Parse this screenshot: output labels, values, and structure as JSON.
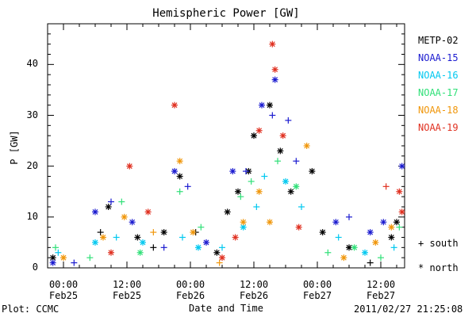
{
  "chart_data": {
    "type": "scatter",
    "title": "Hemispheric Power [GW]",
    "xlabel": "Date and Time",
    "ylabel": "P [GW]",
    "xlim": [
      "2011-02-24 21:00",
      "2011-02-27 16:30"
    ],
    "ylim": [
      0,
      48
    ],
    "yticks": [
      0,
      10,
      20,
      30,
      40
    ],
    "xticks": [
      {
        "time": "00:00",
        "date": "Feb25",
        "at": "2011-02-25 00:00"
      },
      {
        "time": "12:00",
        "date": "Feb25",
        "at": "2011-02-25 12:00"
      },
      {
        "time": "00:00",
        "date": "Feb26",
        "at": "2011-02-26 00:00"
      },
      {
        "time": "12:00",
        "date": "Feb26",
        "at": "2011-02-26 12:00"
      },
      {
        "time": "00:00",
        "date": "Feb27",
        "at": "2011-02-27 00:00"
      },
      {
        "time": "12:00",
        "date": "Feb27",
        "at": "2011-02-27 12:00"
      }
    ],
    "grid": false,
    "legend_position": "right",
    "marker_legend": [
      {
        "symbol": "+",
        "label": "south"
      },
      {
        "symbol": "*",
        "label": "north"
      }
    ],
    "series": [
      {
        "name": "METP-02",
        "color": "#000000",
        "points": [
          {
            "x": "2011-02-24 22:00",
            "y": 2,
            "h": "north"
          },
          {
            "x": "2011-02-25 07:00",
            "y": 7,
            "h": "south"
          },
          {
            "x": "2011-02-25 08:30",
            "y": 12,
            "h": "north"
          },
          {
            "x": "2011-02-25 14:00",
            "y": 6,
            "h": "north"
          },
          {
            "x": "2011-02-25 17:00",
            "y": 4,
            "h": "south"
          },
          {
            "x": "2011-02-25 19:00",
            "y": 7,
            "h": "north"
          },
          {
            "x": "2011-02-25 22:00",
            "y": 18,
            "h": "north"
          },
          {
            "x": "2011-02-26 01:00",
            "y": 7,
            "h": "south"
          },
          {
            "x": "2011-02-26 05:00",
            "y": 3,
            "h": "north"
          },
          {
            "x": "2011-02-26 07:00",
            "y": 11,
            "h": "north"
          },
          {
            "x": "2011-02-26 09:00",
            "y": 15,
            "h": "north"
          },
          {
            "x": "2011-02-26 11:00",
            "y": 19,
            "h": "north"
          },
          {
            "x": "2011-02-26 12:00",
            "y": 26,
            "h": "north"
          },
          {
            "x": "2011-02-26 15:00",
            "y": 32,
            "h": "north"
          },
          {
            "x": "2011-02-26 17:00",
            "y": 23,
            "h": "north"
          },
          {
            "x": "2011-02-26 19:00",
            "y": 15,
            "h": "north"
          },
          {
            "x": "2011-02-26 23:00",
            "y": 19,
            "h": "north"
          },
          {
            "x": "2011-02-27 01:00",
            "y": 7,
            "h": "north"
          },
          {
            "x": "2011-02-27 06:00",
            "y": 4,
            "h": "north"
          },
          {
            "x": "2011-02-27 10:00",
            "y": 1,
            "h": "south"
          },
          {
            "x": "2011-02-27 14:00",
            "y": 6,
            "h": "north"
          },
          {
            "x": "2011-02-27 15:00",
            "y": 9,
            "h": "north"
          }
        ]
      },
      {
        "name": "NOAA-15",
        "color": "#1c1cd0",
        "points": [
          {
            "x": "2011-02-24 22:00",
            "y": 1,
            "h": "north"
          },
          {
            "x": "2011-02-25 02:00",
            "y": 1,
            "h": "south"
          },
          {
            "x": "2011-02-25 06:00",
            "y": 11,
            "h": "north"
          },
          {
            "x": "2011-02-25 09:00",
            "y": 13,
            "h": "south"
          },
          {
            "x": "2011-02-25 13:00",
            "y": 9,
            "h": "north"
          },
          {
            "x": "2011-02-25 19:00",
            "y": 4,
            "h": "south"
          },
          {
            "x": "2011-02-25 21:00",
            "y": 19,
            "h": "north"
          },
          {
            "x": "2011-02-25 23:30",
            "y": 16,
            "h": "south"
          },
          {
            "x": "2011-02-26 03:00",
            "y": 5,
            "h": "north"
          },
          {
            "x": "2011-02-26 08:00",
            "y": 19,
            "h": "north"
          },
          {
            "x": "2011-02-26 10:30",
            "y": 19,
            "h": "south"
          },
          {
            "x": "2011-02-26 13:30",
            "y": 32,
            "h": "north"
          },
          {
            "x": "2011-02-26 15:30",
            "y": 30,
            "h": "south"
          },
          {
            "x": "2011-02-26 16:00",
            "y": 37,
            "h": "north"
          },
          {
            "x": "2011-02-26 18:30",
            "y": 29,
            "h": "south"
          },
          {
            "x": "2011-02-26 20:00",
            "y": 21,
            "h": "south"
          },
          {
            "x": "2011-02-27 03:30",
            "y": 9,
            "h": "north"
          },
          {
            "x": "2011-02-27 06:00",
            "y": 10,
            "h": "south"
          },
          {
            "x": "2011-02-27 10:00",
            "y": 7,
            "h": "north"
          },
          {
            "x": "2011-02-27 12:30",
            "y": 9,
            "h": "north"
          },
          {
            "x": "2011-02-27 16:00",
            "y": 20,
            "h": "north"
          }
        ]
      },
      {
        "name": "NOAA-16",
        "color": "#00c8f0",
        "points": [
          {
            "x": "2011-02-24 23:00",
            "y": 3,
            "h": "south"
          },
          {
            "x": "2011-02-25 06:00",
            "y": 5,
            "h": "north"
          },
          {
            "x": "2011-02-25 10:00",
            "y": 6,
            "h": "south"
          },
          {
            "x": "2011-02-25 15:00",
            "y": 5,
            "h": "north"
          },
          {
            "x": "2011-02-25 22:30",
            "y": 6,
            "h": "south"
          },
          {
            "x": "2011-02-26 01:30",
            "y": 4,
            "h": "north"
          },
          {
            "x": "2011-02-26 06:00",
            "y": 4,
            "h": "south"
          },
          {
            "x": "2011-02-26 10:00",
            "y": 8,
            "h": "north"
          },
          {
            "x": "2011-02-26 12:30",
            "y": 12,
            "h": "south"
          },
          {
            "x": "2011-02-26 14:00",
            "y": 18,
            "h": "south"
          },
          {
            "x": "2011-02-26 18:00",
            "y": 17,
            "h": "north"
          },
          {
            "x": "2011-02-26 21:00",
            "y": 12,
            "h": "south"
          },
          {
            "x": "2011-02-27 04:00",
            "y": 6,
            "h": "south"
          },
          {
            "x": "2011-02-27 09:00",
            "y": 3,
            "h": "north"
          },
          {
            "x": "2011-02-27 14:30",
            "y": 4,
            "h": "south"
          }
        ]
      },
      {
        "name": "NOAA-17",
        "color": "#30e078",
        "points": [
          {
            "x": "2011-02-24 22:30",
            "y": 4,
            "h": "south"
          },
          {
            "x": "2011-02-25 05:00",
            "y": 2,
            "h": "south"
          },
          {
            "x": "2011-02-25 11:00",
            "y": 13,
            "h": "south"
          },
          {
            "x": "2011-02-25 14:30",
            "y": 3,
            "h": "north"
          },
          {
            "x": "2011-02-25 22:00",
            "y": 15,
            "h": "south"
          },
          {
            "x": "2011-02-26 02:00",
            "y": 8,
            "h": "south"
          },
          {
            "x": "2011-02-26 09:30",
            "y": 14,
            "h": "south"
          },
          {
            "x": "2011-02-26 11:30",
            "y": 17,
            "h": "south"
          },
          {
            "x": "2011-02-26 16:30",
            "y": 21,
            "h": "south"
          },
          {
            "x": "2011-02-26 20:00",
            "y": 16,
            "h": "north"
          },
          {
            "x": "2011-02-27 02:00",
            "y": 3,
            "h": "south"
          },
          {
            "x": "2011-02-27 07:00",
            "y": 4,
            "h": "north"
          },
          {
            "x": "2011-02-27 12:00",
            "y": 2,
            "h": "south"
          },
          {
            "x": "2011-02-27 15:30",
            "y": 8,
            "h": "south"
          }
        ]
      },
      {
        "name": "NOAA-18",
        "color": "#f0960a",
        "points": [
          {
            "x": "2011-02-25 00:00",
            "y": 2,
            "h": "north"
          },
          {
            "x": "2011-02-25 07:30",
            "y": 6,
            "h": "north"
          },
          {
            "x": "2011-02-25 11:30",
            "y": 10,
            "h": "north"
          },
          {
            "x": "2011-02-25 17:00",
            "y": 7,
            "h": "south"
          },
          {
            "x": "2011-02-25 22:00",
            "y": 21,
            "h": "north"
          },
          {
            "x": "2011-02-26 00:30",
            "y": 7,
            "h": "north"
          },
          {
            "x": "2011-02-26 05:30",
            "y": 1,
            "h": "south"
          },
          {
            "x": "2011-02-26 10:00",
            "y": 9,
            "h": "north"
          },
          {
            "x": "2011-02-26 13:00",
            "y": 15,
            "h": "north"
          },
          {
            "x": "2011-02-26 15:00",
            "y": 9,
            "h": "north"
          },
          {
            "x": "2011-02-26 22:00",
            "y": 24,
            "h": "north"
          },
          {
            "x": "2011-02-27 05:00",
            "y": 2,
            "h": "north"
          },
          {
            "x": "2011-02-27 11:00",
            "y": 5,
            "h": "north"
          },
          {
            "x": "2011-02-27 14:00",
            "y": 8,
            "h": "north"
          }
        ]
      },
      {
        "name": "NOAA-19",
        "color": "#e03020",
        "points": [
          {
            "x": "2011-02-25 09:00",
            "y": 3,
            "h": "north"
          },
          {
            "x": "2011-02-25 12:30",
            "y": 20,
            "h": "north"
          },
          {
            "x": "2011-02-25 16:00",
            "y": 11,
            "h": "north"
          },
          {
            "x": "2011-02-25 21:00",
            "y": 32,
            "h": "north"
          },
          {
            "x": "2011-02-26 06:00",
            "y": 2,
            "h": "north"
          },
          {
            "x": "2011-02-26 08:30",
            "y": 6,
            "h": "north"
          },
          {
            "x": "2011-02-26 13:00",
            "y": 27,
            "h": "north"
          },
          {
            "x": "2011-02-26 15:30",
            "y": 44,
            "h": "north"
          },
          {
            "x": "2011-02-26 16:00",
            "y": 39,
            "h": "north"
          },
          {
            "x": "2011-02-26 17:30",
            "y": 26,
            "h": "north"
          },
          {
            "x": "2011-02-26 20:30",
            "y": 8,
            "h": "north"
          },
          {
            "x": "2011-02-27 13:00",
            "y": 16,
            "h": "south"
          },
          {
            "x": "2011-02-27 15:30",
            "y": 15,
            "h": "north"
          },
          {
            "x": "2011-02-27 16:00",
            "y": 11,
            "h": "north"
          }
        ]
      }
    ]
  },
  "footer": {
    "plot_label": "Plot: CCMC",
    "timestamp": "2011/02/27 21:25:08"
  }
}
